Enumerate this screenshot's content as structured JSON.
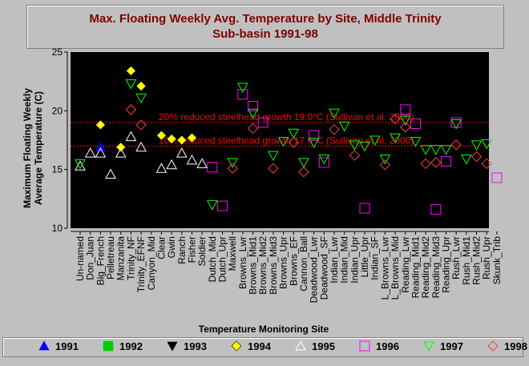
{
  "title": {
    "line1": "Max. Floating Weekly Avg. Temperature by Site, Middle Trinity",
    "line2": "Sub-basin 1991-98"
  },
  "colors": {
    "background": "#c0c0c0",
    "plot_background": "#000000",
    "title_text": "#800000",
    "reference_line": "#ff0000",
    "y1991": "#0000ff",
    "y1992": "#00cc00",
    "y1993": "#000000",
    "y1994": "#ffff00",
    "y1995": "#ffffff",
    "y1996": "#ff00ff",
    "y1997": "#00ff00",
    "y1998": "#ff4040"
  },
  "chart_data": {
    "type": "scatter",
    "xlabel": "Temperature Monitoring Site",
    "ylabel": "Maximum Floating Weekly Average Temperature (C)",
    "ylim": [
      10,
      25
    ],
    "yticks": [
      10,
      15,
      20,
      25
    ],
    "grid": false,
    "legend_position": "bottom",
    "categories": [
      "Un-named",
      "Don_Juan",
      "Big_French",
      "Pelletreau",
      "Manzanita",
      "Trinity_NF",
      "Trinity_EFNF",
      "Canyon_Mid",
      "Clear",
      "Gwin",
      "Ranch",
      "Fisher",
      "Soldier",
      "Dutch_Mid",
      "Dutch_Upr",
      "Maxwell",
      "Browns_Lwr",
      "Browns_Mid1",
      "Browns_Mid2",
      "Browns_Mid3",
      "Browns_Upr",
      "Browns_EF",
      "Cannon_Ball",
      "Deadwood_Lwr",
      "Deadwood_SF",
      "Indian_Lwr",
      "Indian_Mid",
      "Indian_Upr",
      "Little_Upr",
      "Indian_SF",
      "L_Browns_Lwr",
      "L_Browns_Mid",
      "Reading_Lwr",
      "Reading_Mid1",
      "Reading_Mid2",
      "Reading_Mid3",
      "Reading_Upr",
      "Rush_Lwr",
      "Rush_Mid1",
      "Rush_Mid2",
      "Rush_Upr",
      "Skunk_Trib"
    ],
    "series": [
      {
        "name": "1991",
        "marker": "triangle-up",
        "points": [
          [
            2,
            16.9
          ]
        ]
      },
      {
        "name": "1992",
        "marker": "square",
        "points": []
      },
      {
        "name": "1993",
        "marker": "triangle-down",
        "points": [
          [
            6,
            17.6
          ],
          [
            7,
            17.3
          ],
          [
            38,
            15.9
          ]
        ]
      },
      {
        "name": "1994",
        "marker": "diamond",
        "points": [
          [
            2,
            18.8
          ],
          [
            4,
            16.9
          ],
          [
            5,
            23.4
          ],
          [
            6,
            22.1
          ],
          [
            8,
            17.9
          ],
          [
            9,
            17.6
          ],
          [
            10,
            17.5
          ],
          [
            11,
            17.7
          ]
        ]
      },
      {
        "name": "1995",
        "marker": "triangle-up",
        "points": [
          [
            0,
            15.3
          ],
          [
            1,
            16.4
          ],
          [
            2,
            16.4
          ],
          [
            3,
            14.6
          ],
          [
            4,
            16.4
          ],
          [
            5,
            17.8
          ],
          [
            6,
            16.9
          ],
          [
            8,
            15.1
          ],
          [
            9,
            15.4
          ],
          [
            10,
            16.4
          ],
          [
            11,
            15.8
          ],
          [
            12,
            15.5
          ]
        ]
      },
      {
        "name": "1996",
        "marker": "square",
        "points": [
          [
            13,
            15.2
          ],
          [
            14,
            11.9
          ],
          [
            16,
            21.4
          ],
          [
            17,
            20.4
          ],
          [
            18,
            19.0
          ],
          [
            23,
            17.9
          ],
          [
            24,
            15.6
          ],
          [
            28,
            11.7
          ],
          [
            32,
            20.1
          ],
          [
            33,
            18.9
          ],
          [
            35,
            11.6
          ],
          [
            36,
            15.7
          ],
          [
            37,
            19.0
          ],
          [
            41,
            14.3
          ]
        ]
      },
      {
        "name": "1997",
        "marker": "triangle-down",
        "points": [
          [
            0,
            15.5
          ],
          [
            5,
            22.3
          ],
          [
            6,
            21.1
          ],
          [
            13,
            12.0
          ],
          [
            15,
            15.6
          ],
          [
            16,
            22.0
          ],
          [
            17,
            19.8
          ],
          [
            19,
            16.2
          ],
          [
            20,
            17.4
          ],
          [
            21,
            18.1
          ],
          [
            22,
            15.6
          ],
          [
            23,
            17.3
          ],
          [
            24,
            15.9
          ],
          [
            25,
            19.8
          ],
          [
            26,
            18.7
          ],
          [
            27,
            17.1
          ],
          [
            28,
            17.0
          ],
          [
            29,
            17.5
          ],
          [
            30,
            15.9
          ],
          [
            31,
            17.7
          ],
          [
            32,
            19.2
          ],
          [
            33,
            17.4
          ],
          [
            34,
            16.7
          ],
          [
            35,
            16.7
          ],
          [
            36,
            16.7
          ],
          [
            37,
            18.9
          ],
          [
            38,
            15.9
          ],
          [
            39,
            17.1
          ],
          [
            40,
            17.2
          ]
        ]
      },
      {
        "name": "1998",
        "marker": "diamond",
        "points": [
          [
            5,
            20.1
          ],
          [
            6,
            18.8
          ],
          [
            15,
            15.1
          ],
          [
            17,
            18.5
          ],
          [
            19,
            15.1
          ],
          [
            21,
            17.3
          ],
          [
            22,
            14.8
          ],
          [
            25,
            18.4
          ],
          [
            27,
            16.2
          ],
          [
            30,
            15.4
          ],
          [
            31,
            19.3
          ],
          [
            32,
            18.6
          ],
          [
            34,
            15.5
          ],
          [
            35,
            15.6
          ],
          [
            37,
            17.1
          ],
          [
            39,
            16.1
          ],
          [
            40,
            15.5
          ]
        ]
      }
    ],
    "reference_lines": [
      {
        "y": 19.0,
        "label": "20% reduced steelhead growth 19.0°C (Sullivan et al. 2000)"
      },
      {
        "y": 17.0,
        "label": "10% reduced steelhead growth 17.0°C (Sullivan et al. 2000)"
      }
    ]
  }
}
